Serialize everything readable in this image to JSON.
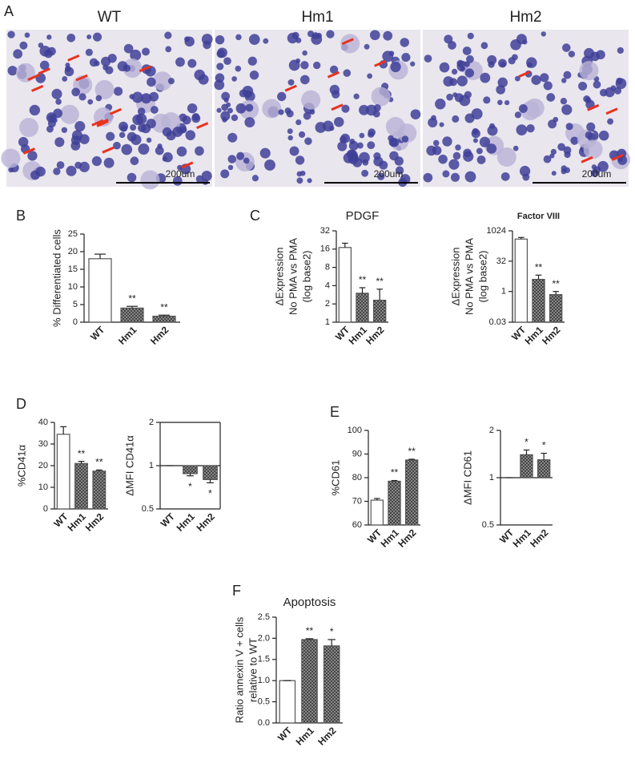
{
  "panel_letters": [
    "A",
    "B",
    "C",
    "D",
    "E",
    "F"
  ],
  "micrographs": [
    {
      "label": "WT",
      "scale_bar": "200um"
    },
    {
      "label": "Hm1",
      "scale_bar": "200um"
    },
    {
      "label": "Hm2",
      "scale_bar": "200um"
    }
  ],
  "chart_data": [
    {
      "type": "bar",
      "y_label": [
        "% Differentiated cells"
      ],
      "categories": [
        "WT",
        "Hm1",
        "Hm2"
      ],
      "values": [
        18,
        4,
        1.7
      ],
      "errors": [
        1.3,
        0.5,
        0.3
      ],
      "fill_styles": [
        "open",
        "hatched",
        "hatched"
      ],
      "color": "#555555",
      "ylim": [
        0,
        25
      ],
      "yticks": [
        0,
        5,
        10,
        15,
        20,
        25
      ],
      "annotations": [
        {
          "category": "Hm1",
          "text": "**"
        },
        {
          "category": "Hm2",
          "text": "**"
        }
      ]
    },
    {
      "type": "bar",
      "title": "PDGF",
      "y_label": [
        "ΔExpression",
        "No PMA vs PMA",
        "(log base2)"
      ],
      "categories": [
        "WT",
        "Hm1",
        "Hm2"
      ],
      "values": [
        17,
        3,
        2.3
      ],
      "errors": [
        3,
        0.7,
        1.2
      ],
      "fill_styles": [
        "open",
        "hatched",
        "hatched"
      ],
      "color": "#555555",
      "log_scale": true,
      "ylim": [
        1,
        32
      ],
      "yticks": [
        1,
        2,
        4,
        8,
        16,
        32
      ],
      "annotations": [
        {
          "category": "Hm1",
          "text": "**"
        },
        {
          "category": "Hm2",
          "text": "**"
        }
      ]
    },
    {
      "type": "bar",
      "title": "Factor VIII",
      "y_label": [
        "ΔExpression",
        "No PMA vs PMA",
        "(log base2)"
      ],
      "categories": [
        "WT",
        "Hm1",
        "Hm2"
      ],
      "values": [
        400,
        4,
        0.7
      ],
      "errors": [
        80,
        2.5,
        0.3
      ],
      "fill_styles": [
        "open",
        "hatched",
        "hatched"
      ],
      "color": "#555555",
      "log_scale": true,
      "ylim": [
        0.03,
        1024
      ],
      "yticks": [
        0.03,
        1,
        32,
        1024
      ],
      "annotations": [
        {
          "category": "Hm1",
          "text": "**"
        },
        {
          "category": "Hm2",
          "text": "**"
        }
      ]
    },
    {
      "type": "bar",
      "y_label": [
        "%CD41α"
      ],
      "categories": [
        "WT",
        "Hm1",
        "Hm2"
      ],
      "values": [
        34.5,
        21,
        17.5
      ],
      "errors": [
        3.5,
        1,
        0.5
      ],
      "fill_styles": [
        "open",
        "hatched",
        "hatched"
      ],
      "color": "#555555",
      "ylim": [
        0,
        40
      ],
      "yticks": [
        0,
        10,
        20,
        30,
        40
      ],
      "annotations": [
        {
          "category": "Hm1",
          "text": "**"
        },
        {
          "category": "Hm2",
          "text": "**"
        }
      ]
    },
    {
      "type": "bar",
      "y_label": [
        "ΔMFI CD41α"
      ],
      "categories": [
        "WT",
        "Hm1",
        "Hm2"
      ],
      "values": [
        1,
        0.88,
        0.8
      ],
      "errors": [
        0,
        0.03,
        0.04
      ],
      "fill_styles": [
        "open",
        "hatched",
        "hatched"
      ],
      "color": "#555555",
      "log_scale": true,
      "ylim": [
        0.5,
        2
      ],
      "yticks": [
        0.5,
        1,
        2
      ],
      "baseline": 1,
      "frame": true,
      "annotations": [
        {
          "category": "Hm1",
          "text": "*"
        },
        {
          "category": "Hm2",
          "text": "*"
        }
      ]
    },
    {
      "type": "bar",
      "y_label": [
        "%CD61"
      ],
      "categories": [
        "WT",
        "Hm1",
        "Hm2"
      ],
      "values": [
        70.5,
        78.5,
        87.5
      ],
      "errors": [
        0.7,
        0.3,
        0.3
      ],
      "fill_styles": [
        "open",
        "hatched",
        "hatched"
      ],
      "color": "#555555",
      "ylim": [
        60,
        100
      ],
      "yticks": [
        60,
        70,
        80,
        90,
        100
      ],
      "annotations": [
        {
          "category": "Hm1",
          "text": "**"
        },
        {
          "category": "Hm2",
          "text": "**"
        }
      ]
    },
    {
      "type": "bar",
      "y_label": [
        "ΔMFI CD61"
      ],
      "categories": [
        "WT",
        "Hm1",
        "Hm2"
      ],
      "values": [
        1,
        1.4,
        1.3
      ],
      "errors": [
        0,
        0.1,
        0.13
      ],
      "fill_styles": [
        "open",
        "hatched",
        "hatched"
      ],
      "color": "#555555",
      "log_scale": true,
      "ylim": [
        0.5,
        2
      ],
      "yticks": [
        0.5,
        1,
        2
      ],
      "baseline": 1,
      "annotations": [
        {
          "category": "Hm1",
          "text": "*"
        },
        {
          "category": "Hm2",
          "text": "*"
        }
      ]
    },
    {
      "type": "bar",
      "title": "Apoptosis",
      "y_label": [
        "Ratio annexin V + cells",
        "relative to WT"
      ],
      "categories": [
        "WT",
        "Hm1",
        "Hm2"
      ],
      "values": [
        1,
        1.97,
        1.82
      ],
      "errors": [
        0,
        0.02,
        0.15
      ],
      "fill_styles": [
        "open",
        "hatched",
        "hatched"
      ],
      "color": "#555555",
      "ylim": [
        0,
        2.5
      ],
      "yticks": [
        {
          "value": 0,
          "label": "0.0"
        },
        0.5,
        {
          "value": 1,
          "label": "1.0"
        },
        1.5,
        {
          "value": 2,
          "label": "2.0"
        },
        2.5
      ],
      "annotations": [
        {
          "category": "Hm1",
          "text": "**"
        },
        {
          "category": "Hm2",
          "text": "*"
        }
      ]
    }
  ]
}
